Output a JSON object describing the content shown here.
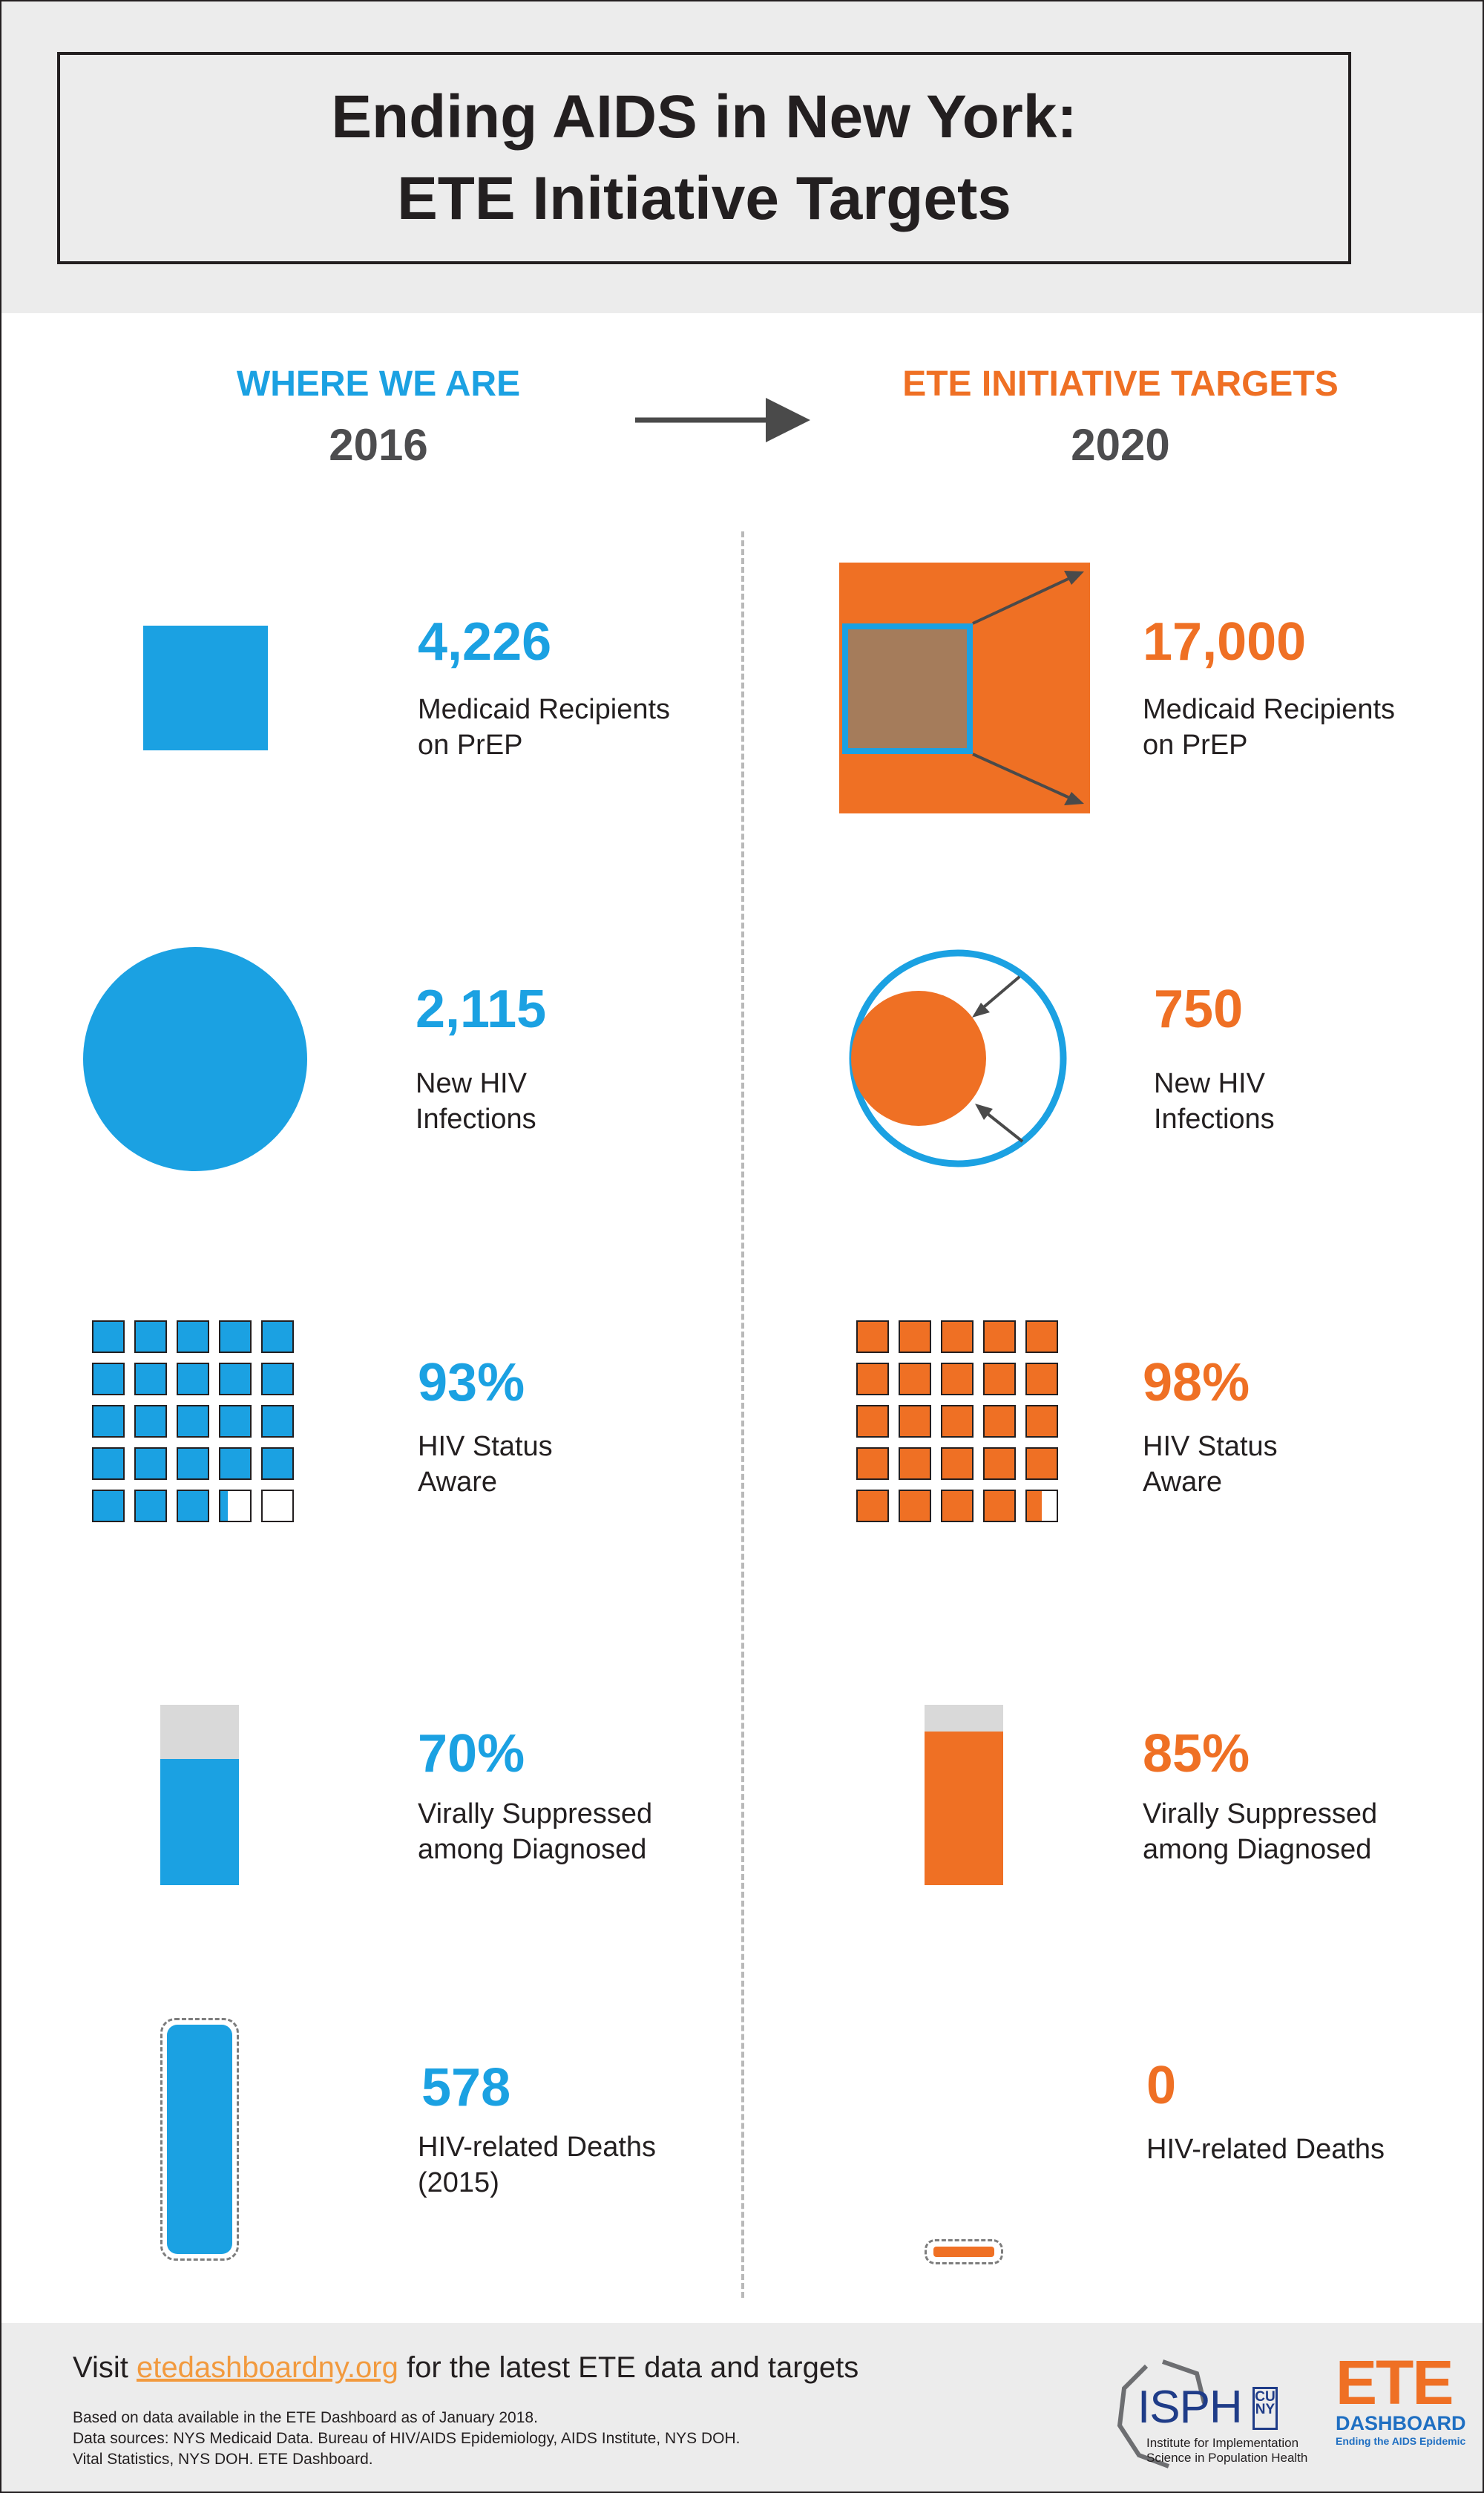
{
  "title": {
    "line1": "Ending AIDS in New York:",
    "line2": "ETE Initiative Targets"
  },
  "columns": {
    "left": {
      "heading": "WHERE WE ARE",
      "year": "2016"
    },
    "right": {
      "heading": "ETE INITIATIVE TARGETS",
      "year": "2020"
    }
  },
  "colors": {
    "blue": "#1ba1e2",
    "orange": "#ef7024",
    "brown": "#a57c5b",
    "grey": "#d9d9d9"
  },
  "icons": {
    "arrow": "right-arrow-icon"
  },
  "metrics": [
    {
      "key": "prep",
      "now_value": "4,226",
      "now_label": [
        "Medicaid Recipients",
        "on PrEP"
      ],
      "target_value": "17,000",
      "target_label": [
        "Medicaid Recipients",
        "on PrEP"
      ]
    },
    {
      "key": "infections",
      "now_value": "2,115",
      "now_label": [
        "New HIV",
        "Infections"
      ],
      "target_value": "750",
      "target_label": [
        "New HIV",
        "Infections"
      ]
    },
    {
      "key": "aware",
      "now_value": "93%",
      "now_label": [
        "HIV Status",
        "Aware"
      ],
      "now_fraction": 0.93,
      "target_value": "98%",
      "target_label": [
        "HIV Status",
        "Aware"
      ],
      "target_fraction": 0.98
    },
    {
      "key": "suppressed",
      "now_value": "70%",
      "now_label": [
        "Virally Suppressed",
        "among Diagnosed"
      ],
      "now_fraction": 0.7,
      "target_value": "85%",
      "target_label": [
        "Virally Suppressed",
        "among Diagnosed"
      ],
      "target_fraction": 0.85
    },
    {
      "key": "deaths",
      "now_value": "578",
      "now_label": [
        "HIV-related Deaths",
        "(2015)"
      ],
      "target_value": "0",
      "target_label": [
        "HIV-related Deaths"
      ]
    }
  ],
  "footer": {
    "visit_prefix": "Visit",
    "link": "etedashboardny.org",
    "visit_suffix": "for the latest ETE data and targets",
    "sources": [
      "Based on data available in the ETE Dashboard as of January 2018.",
      "Data sources: NYS Medicaid Data.  Bureau of HIV/AIDS Epidemiology, AIDS Institute, NYS DOH.",
      "Vital Statistics, NYS DOH. ETE Dashboard."
    ],
    "logo_isph": {
      "text": "ISPH",
      "cuny": "CUNY",
      "subtitle1": "Institute for Implementation",
      "subtitle2": "Science in Population Health"
    },
    "logo_ete": {
      "line1": "ETE",
      "line2": "DASHBOARD",
      "line3": "Ending the AIDS Epidemic"
    }
  }
}
